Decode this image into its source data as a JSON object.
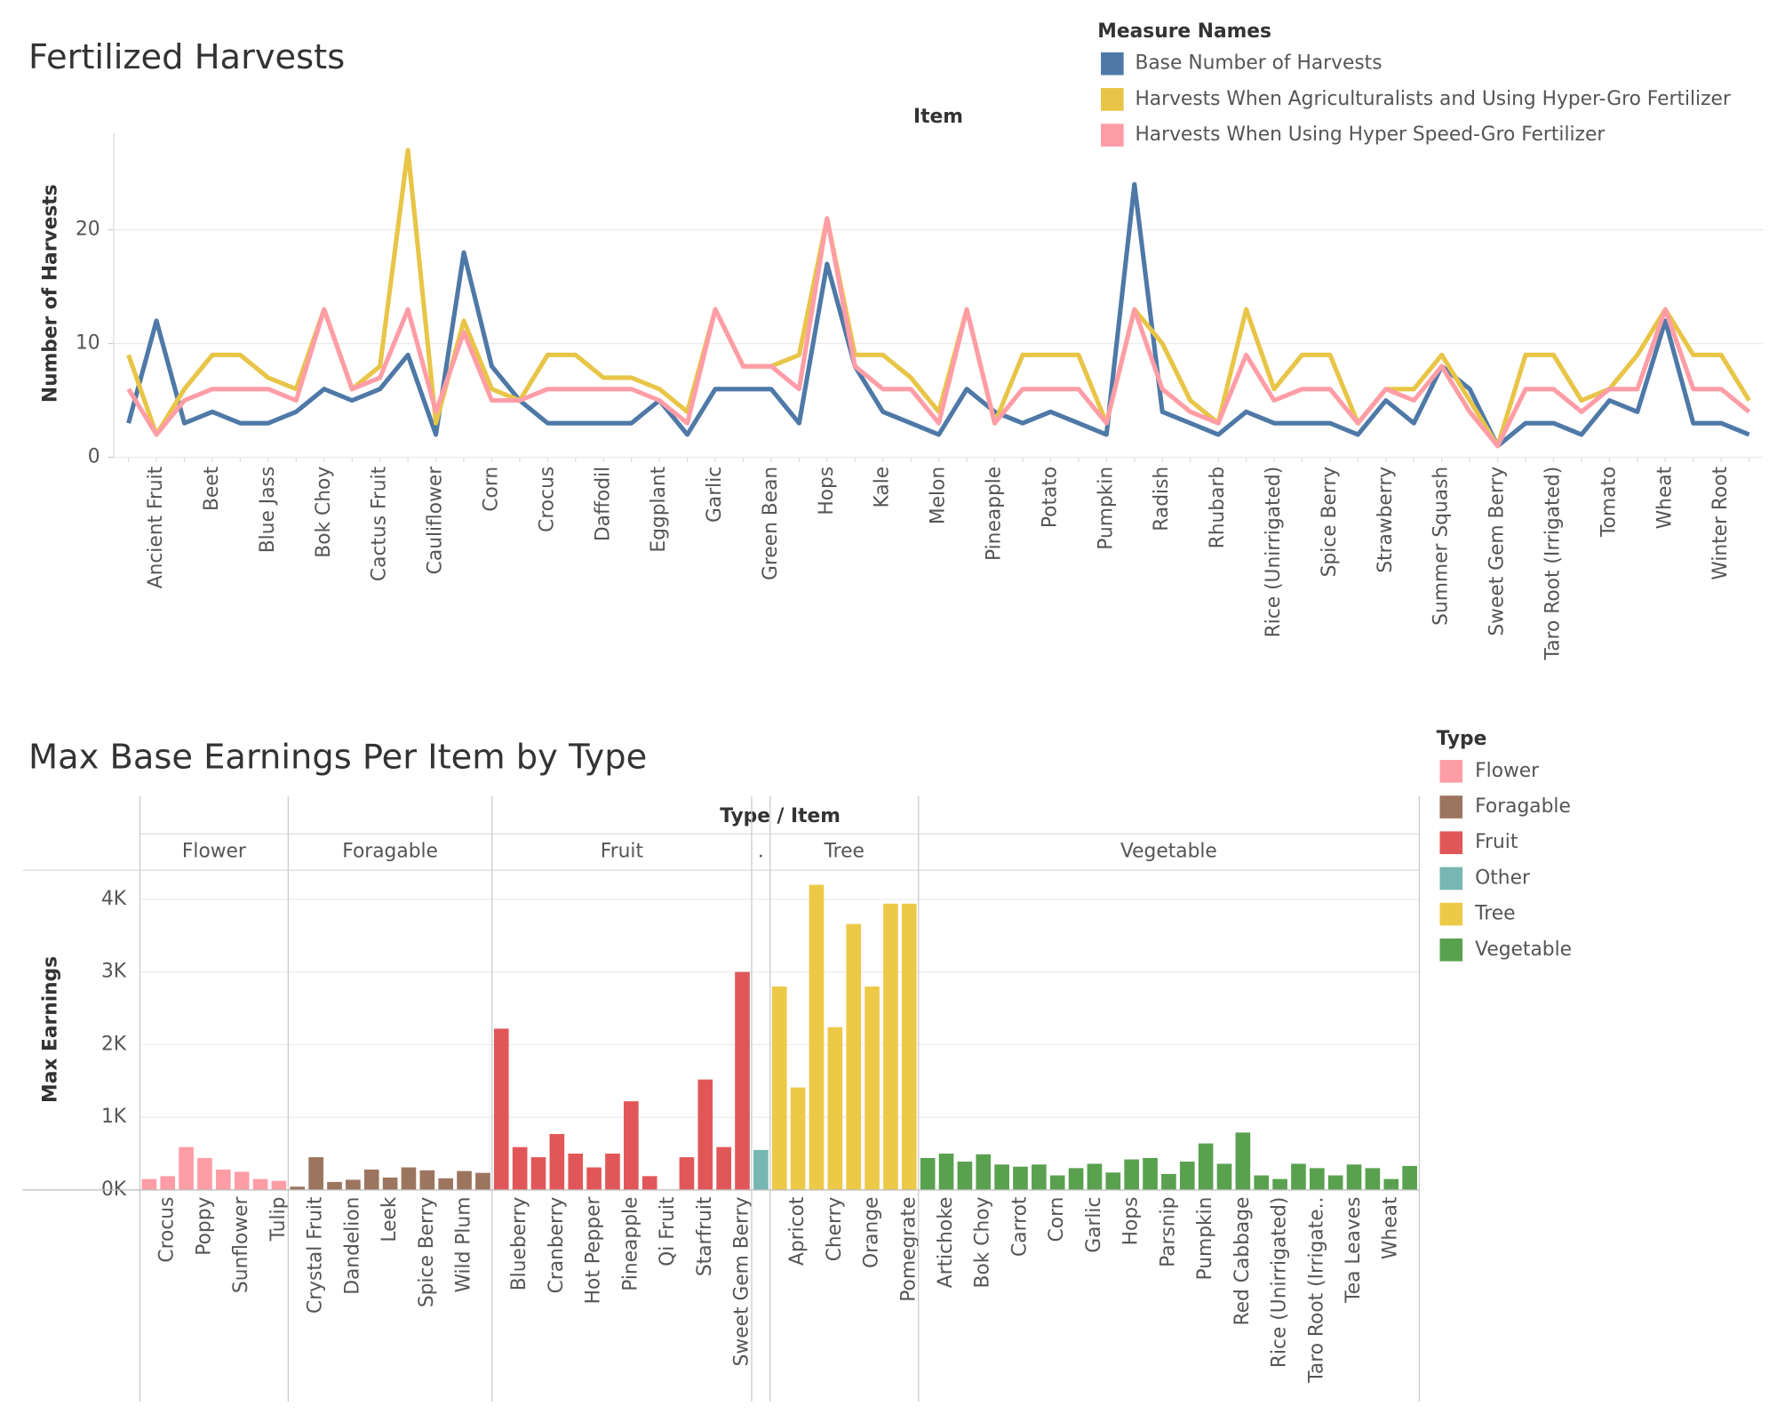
{
  "chart_data": [
    {
      "type": "line",
      "title": "Fertilized Harvests",
      "x_label": "Item",
      "y_label": "Number of Harvests",
      "legend_title": "Measure Names",
      "categories": [
        null,
        "Ancient Fruit",
        null,
        "Beet",
        null,
        "Blue Jass",
        null,
        "Bok Choy",
        null,
        "Cactus Fruit",
        null,
        "Cauliflower",
        null,
        "Corn",
        null,
        "Crocus",
        null,
        "Daffodil",
        null,
        "Eggplant",
        null,
        "Garlic",
        null,
        "Green Bean",
        null,
        "Hops",
        null,
        "Kale",
        null,
        "Melon",
        null,
        "Pineapple",
        null,
        "Potato",
        null,
        "Pumpkin",
        null,
        "Radish",
        null,
        "Rhubarb",
        null,
        "Rice (Unirrigated)",
        null,
        "Spice Berry",
        null,
        "Strawberry",
        null,
        "Summer Squash",
        null,
        "Sweet Gem Berry",
        null,
        "Taro Root (Irrigated)",
        null,
        "Tomato",
        null,
        "Wheat",
        null,
        "Winter Root",
        null
      ],
      "series": [
        {
          "name": "Base Number of Harvests",
          "color": "#4e79a7",
          "values": [
            3,
            12,
            3,
            4,
            3,
            3,
            4,
            6,
            5,
            6,
            9,
            2,
            18,
            8,
            5,
            3,
            3,
            3,
            3,
            5,
            2,
            6,
            6,
            6,
            3,
            17,
            8,
            4,
            3,
            2,
            6,
            4,
            3,
            4,
            3,
            2,
            24,
            4,
            3,
            2,
            4,
            3,
            3,
            3,
            2,
            5,
            3,
            8,
            6,
            1,
            3,
            3,
            2,
            5,
            4,
            12,
            3,
            3,
            2
          ]
        },
        {
          "name": "Harvests When Agriculturalists and Using Hyper-Gro Fertilizer",
          "color": "#e8c547",
          "values": [
            9,
            2,
            6,
            9,
            9,
            7,
            6,
            13,
            6,
            8,
            27,
            3,
            12,
            6,
            5,
            9,
            9,
            7,
            7,
            6,
            4,
            13,
            8,
            8,
            9,
            21,
            9,
            9,
            7,
            4,
            13,
            3,
            9,
            9,
            9,
            3,
            13,
            10,
            5,
            3,
            13,
            6,
            9,
            9,
            3,
            6,
            6,
            9,
            5,
            1,
            9,
            9,
            5,
            6,
            9,
            13,
            9,
            9,
            5
          ]
        },
        {
          "name": "Harvests When Using Hyper Speed-Gro Fertilizer",
          "color": "#ff9da7",
          "values": [
            6,
            2,
            5,
            6,
            6,
            6,
            5,
            13,
            6,
            7,
            13,
            4,
            11,
            5,
            5,
            6,
            6,
            6,
            6,
            5,
            3,
            13,
            8,
            8,
            6,
            21,
            8,
            6,
            6,
            3,
            13,
            3,
            6,
            6,
            6,
            3,
            13,
            6,
            4,
            3,
            9,
            5,
            6,
            6,
            3,
            6,
            5,
            8,
            4,
            1,
            6,
            6,
            4,
            6,
            6,
            13,
            6,
            6,
            4
          ]
        }
      ],
      "ylim": [
        0,
        28.5
      ],
      "yticks": [
        0,
        10,
        20
      ],
      "grid": true
    },
    {
      "type": "bar",
      "title": "Max Base Earnings Per Item by Type",
      "x_label": "Type / Item",
      "y_label": "Max Earnings",
      "legend_title": "Type",
      "series": [
        {
          "name": "Flower",
          "header": "Flower",
          "color": "#ff9da7",
          "categories": [
            null,
            "Crocus",
            null,
            "Poppy",
            null,
            "Sunflower",
            null,
            "Tulip"
          ],
          "values": [
            150,
            190,
            590,
            440,
            280,
            250,
            150,
            125
          ]
        },
        {
          "name": "Foragable",
          "header": "Foragable",
          "color": "#9c755f",
          "categories": [
            null,
            "Crystal Fruit",
            null,
            "Dandelion",
            null,
            "Leek",
            null,
            "Spice Berry",
            null,
            "Wild Plum",
            null
          ],
          "values": [
            45,
            450,
            110,
            140,
            280,
            170,
            310,
            270,
            160,
            260,
            235
          ]
        },
        {
          "name": "Fruit",
          "header": "Fruit",
          "color": "#e15759",
          "categories": [
            null,
            "Blueberry",
            null,
            "Cranberry",
            null,
            "Hot Pepper",
            null,
            "Pineapple",
            null,
            "Qi Fruit",
            null,
            "Starfruit",
            null,
            "Sweet Gem Berry"
          ],
          "values": [
            2220,
            590,
            450,
            770,
            500,
            310,
            500,
            1220,
            190,
            0,
            450,
            1520,
            590,
            3000
          ]
        },
        {
          "name": "Other",
          "header": ".",
          "color": "#76b7b2",
          "categories": [
            null
          ],
          "values": [
            550
          ]
        },
        {
          "name": "Tree",
          "header": "Tree",
          "color": "#edc948",
          "categories": [
            null,
            "Apricot",
            null,
            "Cherry",
            null,
            "Orange",
            null,
            "Pomegrate"
          ],
          "values": [
            2800,
            1410,
            4200,
            2240,
            3660,
            2800,
            3940,
            3940
          ]
        },
        {
          "name": "Vegetable",
          "header": "Vegetable",
          "color": "#59a14f",
          "categories": [
            null,
            "Artichoke",
            null,
            "Bok Choy",
            null,
            "Carrot",
            null,
            "Corn",
            null,
            "Garlic",
            null,
            "Hops",
            null,
            "Parsnip",
            null,
            "Pumpkin",
            null,
            "Red Cabbage",
            null,
            "Rice (Unirrigated)",
            null,
            "Taro Root (Irrigate..",
            null,
            "Tea Leaves",
            null,
            "Wheat",
            null
          ],
          "values": [
            440,
            500,
            390,
            490,
            350,
            320,
            350,
            200,
            300,
            360,
            240,
            420,
            440,
            220,
            390,
            640,
            360,
            790,
            200,
            150,
            360,
            300,
            200,
            350,
            300,
            150,
            330
          ]
        }
      ],
      "ylim": [
        0,
        4400
      ],
      "yticks": [
        {
          "value": 0,
          "label": "0K"
        },
        {
          "value": 1000,
          "label": "1K"
        },
        {
          "value": 2000,
          "label": "2K"
        },
        {
          "value": 3000,
          "label": "3K"
        },
        {
          "value": 4000,
          "label": "4K"
        }
      ],
      "grid": true
    }
  ]
}
